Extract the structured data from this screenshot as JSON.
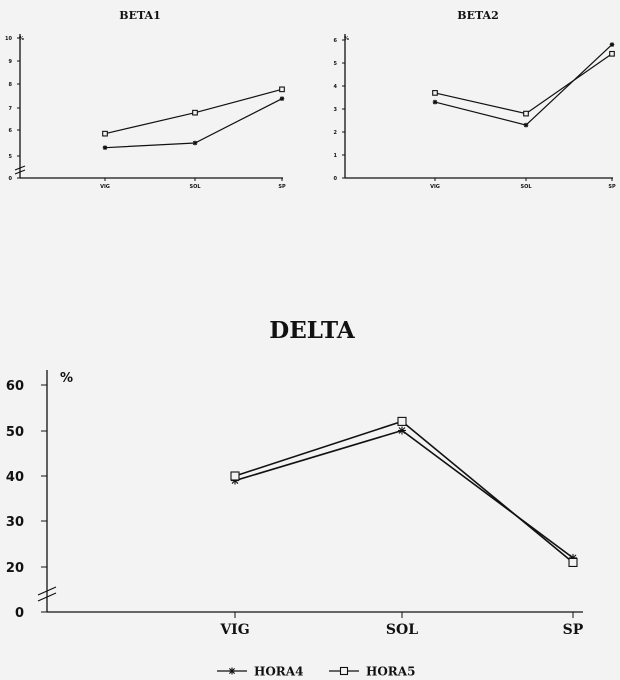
{
  "chart_data": [
    {
      "type": "line",
      "title": "BETA1",
      "ylabel": "%",
      "categories": [
        "VIG",
        "SOL",
        "SP"
      ],
      "y_ticks": [
        "0",
        "5",
        "6",
        "7",
        "8",
        "9",
        "10"
      ],
      "ylim": [
        5,
        10
      ],
      "axis_break": true,
      "series": [
        {
          "name": "HORA4",
          "marker": "asterisk",
          "values": [
            5.3,
            5.5,
            7.4
          ]
        },
        {
          "name": "HORA5",
          "marker": "square",
          "values": [
            5.9,
            6.8,
            7.8
          ]
        }
      ],
      "grid": false
    },
    {
      "type": "line",
      "title": "BETA2",
      "ylabel": "%",
      "categories": [
        "VIG",
        "SOL",
        "SP"
      ],
      "y_ticks": [
        "0",
        "1",
        "2",
        "3",
        "4",
        "5",
        "6"
      ],
      "ylim": [
        0,
        6
      ],
      "axis_break": false,
      "series": [
        {
          "name": "HORA4",
          "marker": "asterisk",
          "values": [
            3.3,
            2.3,
            5.8
          ]
        },
        {
          "name": "HORA5",
          "marker": "square",
          "values": [
            3.7,
            2.8,
            5.4
          ]
        }
      ],
      "grid": false
    },
    {
      "type": "line",
      "title": "DELTA",
      "ylabel": "%",
      "categories": [
        "VIG",
        "SOL",
        "SP"
      ],
      "y_ticks": [
        "0",
        "20",
        "30",
        "40",
        "50",
        "60"
      ],
      "ylim": [
        15,
        60
      ],
      "axis_break": true,
      "series": [
        {
          "name": "HORA4",
          "marker": "asterisk",
          "values": [
            39,
            50,
            22
          ]
        },
        {
          "name": "HORA5",
          "marker": "square",
          "values": [
            40,
            52,
            21
          ]
        }
      ],
      "grid": false
    }
  ],
  "legend": {
    "placement": "bottom-center",
    "items": [
      {
        "label": "HORA4",
        "marker": "asterisk"
      },
      {
        "label": "HORA5",
        "marker": "square"
      }
    ]
  }
}
